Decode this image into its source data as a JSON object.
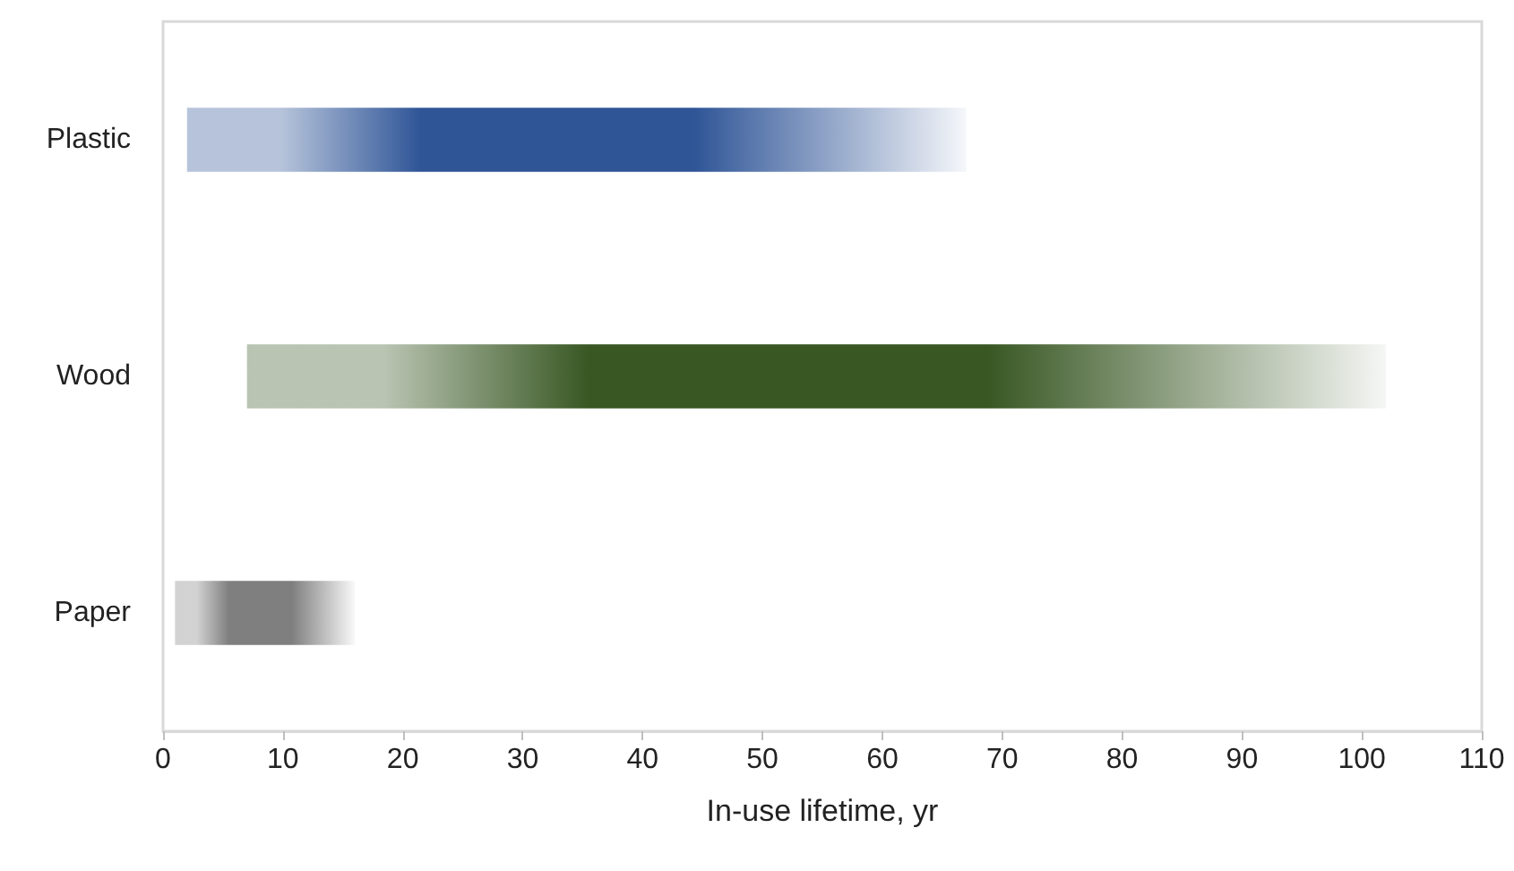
{
  "chart_data": {
    "type": "bar",
    "orientation": "horizontal",
    "xlabel": "In-use lifetime, yr",
    "categories": [
      "Plastic",
      "Wood",
      "Paper"
    ],
    "base": [
      2,
      7,
      1
    ],
    "values": [
      65,
      95,
      15
    ],
    "colors": [
      "#2f5597",
      "#385723",
      "#7f7f7f"
    ],
    "xlim": [
      0,
      110
    ],
    "xticks": [
      0,
      10,
      20,
      30,
      40,
      50,
      60,
      70,
      80,
      90,
      100,
      110
    ],
    "grid": false
  }
}
